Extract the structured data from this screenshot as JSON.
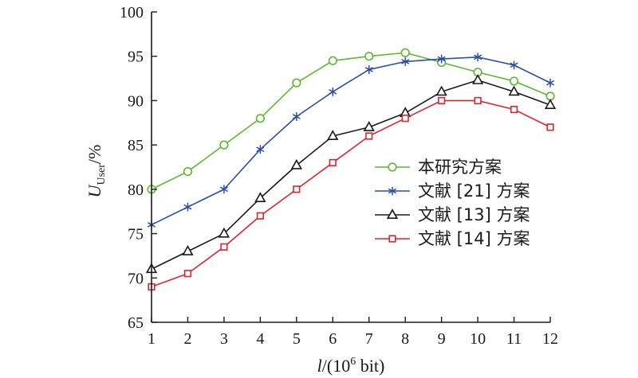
{
  "chart_data": {
    "type": "line",
    "x": [
      1,
      2,
      3,
      4,
      5,
      6,
      7,
      8,
      9,
      10,
      11,
      12
    ],
    "xlim": [
      1,
      12
    ],
    "ylim": [
      65,
      100
    ],
    "xticks": [
      1,
      2,
      3,
      4,
      5,
      6,
      7,
      8,
      9,
      10,
      11,
      12
    ],
    "yticks": [
      65,
      70,
      75,
      80,
      85,
      90,
      95,
      100
    ],
    "xlabel": {
      "var": "l",
      "rest_open": "/(10",
      "sup": "6",
      "rest_close": " bit)"
    },
    "ylabel": {
      "var": "U",
      "sub": "User",
      "rest": "/%"
    },
    "grid": false,
    "legend_position": "right-center",
    "series": [
      {
        "name": "本研究方案",
        "color": "#5cb82e",
        "marker": "circle",
        "values": [
          80,
          82,
          85,
          88,
          92,
          94.5,
          95,
          95.4,
          94.3,
          93.2,
          92.2,
          90.5
        ]
      },
      {
        "name": "文献 [21] 方案",
        "color": "#2e4fa8",
        "marker": "asterisk",
        "values": [
          76,
          78,
          80,
          84.5,
          88.2,
          91,
          93.5,
          94.4,
          94.7,
          94.9,
          94,
          92
        ]
      },
      {
        "name": "文献 [13] 方案",
        "color": "#1a1a1a",
        "marker": "triangle",
        "values": [
          71,
          73,
          75,
          79,
          82.7,
          86,
          87,
          88.6,
          91,
          92.3,
          91,
          89.5
        ]
      },
      {
        "name": "文献 [14] 方案",
        "color": "#d9262e",
        "marker": "square",
        "values": [
          69,
          70.5,
          73.5,
          77,
          80,
          83,
          86,
          88,
          90,
          90,
          89,
          87
        ]
      }
    ]
  }
}
